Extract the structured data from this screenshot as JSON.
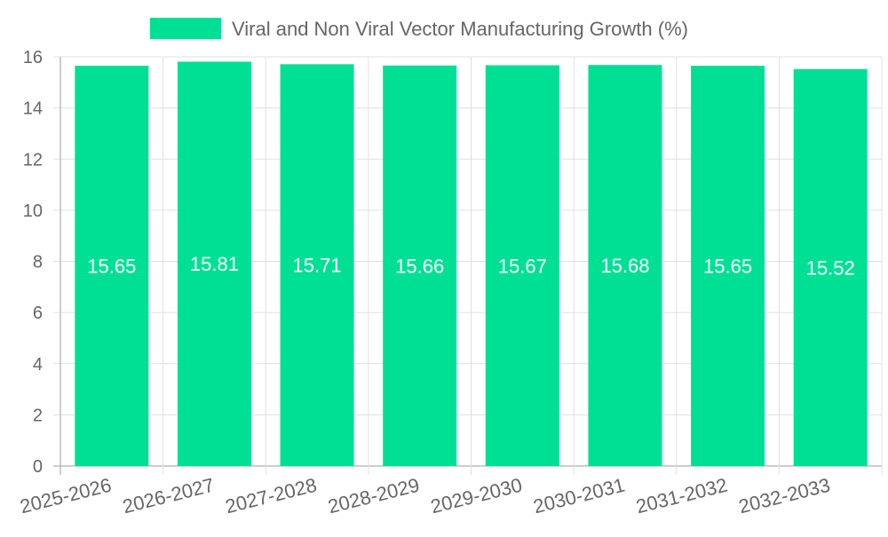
{
  "chart_data": {
    "type": "bar",
    "legend": {
      "label": "Viral and Non Viral Vector Manufacturing Growth (%)",
      "placement": "top-center"
    },
    "categories": [
      "2025-2026",
      "2026-2027",
      "2027-2028",
      "2028-2029",
      "2029-2030",
      "2030-2031",
      "2031-2032",
      "2032-2033"
    ],
    "series": [
      {
        "name": "Viral and Non Viral Vector Manufacturing Growth (%)",
        "color": "#00e095",
        "values": [
          15.65,
          15.81,
          15.71,
          15.66,
          15.67,
          15.68,
          15.65,
          15.52
        ]
      }
    ],
    "data_labels": [
      "15.65",
      "15.81",
      "15.71",
      "15.66",
      "15.67",
      "15.68",
      "15.65",
      "15.52"
    ],
    "ylim": [
      0,
      16
    ],
    "yticks": [
      "0",
      "2",
      "4",
      "6",
      "8",
      "10",
      "12",
      "14",
      "16"
    ],
    "grid": true,
    "title": "",
    "xlabel": "",
    "ylabel": ""
  }
}
